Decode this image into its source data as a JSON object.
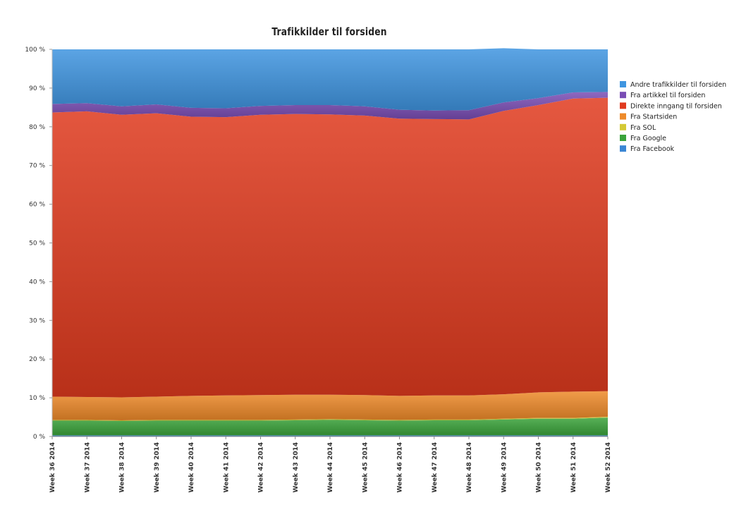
{
  "chart_data": {
    "type": "area",
    "stacked": true,
    "title": "Trafikkilder til forsiden",
    "ylim": [
      0,
      100
    ],
    "y_ticks": [
      "0 %",
      "10 %",
      "20 %",
      "30 %",
      "40 %",
      "50 %",
      "60 %",
      "70 %",
      "80 %",
      "90 %",
      "100 %"
    ],
    "categories": [
      "Week 36 2014",
      "Week 37 2014",
      "Week 38 2014",
      "Week 39 2014",
      "Week 40 2014",
      "Week 41 2014",
      "Week 42 2014",
      "Week 43 2014",
      "Week 44 2014",
      "Week 45 2014",
      "Week 46 2014",
      "Week 47 2014",
      "Week 48 2014",
      "Week 49 2014",
      "Week 50 2014",
      "Week 51 2014",
      "Week 52 2014"
    ],
    "legend_position": "right",
    "legend": [
      "Andre trafikkilder til forsiden",
      "Fra artikkel til forsiden",
      "Direkte inngang til forsiden",
      "Fra Startsiden",
      "Fra SOL",
      "Fra Google",
      "Fra Facebook"
    ],
    "series": [
      {
        "name": "Fra Facebook",
        "color": "#3a86d4",
        "values": [
          0.3,
          0.3,
          0.3,
          0.3,
          0.3,
          0.3,
          0.3,
          0.3,
          0.3,
          0.3,
          0.3,
          0.3,
          0.3,
          0.3,
          0.3,
          0.3,
          0.3
        ]
      },
      {
        "name": "Fra Google",
        "color": "#3aa33a",
        "values": [
          3.8,
          3.8,
          3.7,
          3.8,
          3.8,
          3.8,
          3.8,
          3.9,
          4.0,
          3.9,
          3.8,
          3.9,
          3.9,
          4.1,
          4.3,
          4.3,
          4.6
        ]
      },
      {
        "name": "Fra SOL",
        "color": "#d4c935",
        "values": [
          0.2,
          0.2,
          0.2,
          0.2,
          0.2,
          0.2,
          0.2,
          0.2,
          0.2,
          0.2,
          0.2,
          0.2,
          0.2,
          0.2,
          0.2,
          0.2,
          0.2
        ]
      },
      {
        "name": "Fra Startsiden",
        "color": "#ee8a2a",
        "values": [
          6.0,
          5.9,
          5.9,
          6.0,
          6.2,
          6.3,
          6.4,
          6.4,
          6.3,
          6.3,
          6.2,
          6.2,
          6.2,
          6.3,
          6.6,
          6.8,
          6.6
        ]
      },
      {
        "name": "Direkte inngang til forsiden",
        "color": "#e03a1e",
        "values": [
          73.4,
          73.8,
          73.0,
          73.2,
          72.1,
          71.9,
          72.4,
          72.5,
          72.4,
          72.2,
          71.6,
          71.4,
          71.3,
          73.2,
          74.2,
          75.7,
          75.8
        ]
      },
      {
        "name": "Fra artikkel til forsiden",
        "color": "#7a4db5",
        "values": [
          2.2,
          2.1,
          2.2,
          2.3,
          2.3,
          2.3,
          2.3,
          2.3,
          2.4,
          2.4,
          2.3,
          2.2,
          2.4,
          2.2,
          1.8,
          1.6,
          1.5
        ]
      },
      {
        "name": "Andre trafikkilder til forsiden",
        "color": "#3f95e0",
        "values": [
          14.1,
          13.9,
          14.7,
          14.2,
          15.1,
          15.2,
          14.6,
          14.4,
          14.4,
          14.7,
          15.6,
          15.8,
          15.7,
          14.0,
          12.6,
          11.1,
          11.0
        ]
      }
    ]
  }
}
